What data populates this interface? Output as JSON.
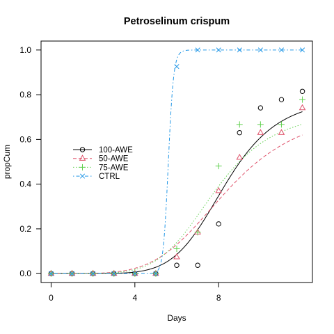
{
  "chart_data": {
    "type": "scatter",
    "title": "Petroselinum crispum",
    "xlabel": "Days",
    "ylabel": "propCum",
    "xlim": [
      -0.48,
      12.48
    ],
    "ylim": [
      -0.04,
      1.04
    ],
    "x_ticks": [
      0,
      4,
      8
    ],
    "y_ticks": [
      0.0,
      0.2,
      0.4,
      0.6,
      0.8,
      1.0
    ],
    "x_tick_labels": [
      "0",
      "4",
      "8"
    ],
    "y_tick_labels": [
      "0.0",
      "0.2",
      "0.4",
      "0.6",
      "0.8",
      "1.0"
    ],
    "grid": false,
    "legend_position": "left-middle",
    "series": [
      {
        "name": "100-AWE",
        "color": "#000000",
        "marker": "circle",
        "line_style": "solid",
        "x": [
          0,
          1,
          2,
          3,
          4,
          5,
          6,
          7,
          8,
          9,
          10,
          11,
          12
        ],
        "y": [
          0.0,
          0.0,
          0.0,
          0.0,
          0.0,
          0.0,
          0.037,
          0.037,
          0.222,
          0.63,
          0.741,
          0.778,
          0.815
        ],
        "curve": {
          "d": 0.79,
          "e": 8.3,
          "b": 6.5
        }
      },
      {
        "name": "50-AWE",
        "color": "#DF536B",
        "marker": "triangle",
        "line_style": "dashed",
        "x": [
          0,
          1,
          2,
          3,
          4,
          5,
          6,
          7,
          8,
          9,
          10,
          11,
          12
        ],
        "y": [
          0.0,
          0.0,
          0.0,
          0.0,
          0.0,
          0.0,
          0.074,
          0.185,
          0.37,
          0.519,
          0.63,
          0.63,
          0.741
        ],
        "curve": {
          "d": 0.74,
          "e": 8.4,
          "b": 4.6
        }
      },
      {
        "name": "75-AWE",
        "color": "#61D04F",
        "marker": "plus",
        "line_style": "dotted",
        "x": [
          0,
          1,
          2,
          3,
          4,
          5,
          6,
          7,
          8,
          9,
          10,
          11,
          12
        ],
        "y": [
          0.0,
          0.0,
          0.0,
          0.0,
          0.0,
          0.0,
          0.111,
          0.185,
          0.481,
          0.667,
          0.667,
          0.667,
          0.778
        ],
        "curve": {
          "d": 0.73,
          "e": 7.8,
          "b": 5.5
        }
      },
      {
        "name": "CTRL",
        "color": "#2297E6",
        "marker": "cross",
        "line_style": "dotdash",
        "x": [
          0,
          1,
          2,
          3,
          4,
          5,
          6,
          7,
          8,
          9,
          10,
          11,
          12
        ],
        "y": [
          0.0,
          0.0,
          0.0,
          0.0,
          0.0,
          0.0,
          0.926,
          1.0,
          1.0,
          1.0,
          1.0,
          1.0,
          1.0
        ],
        "curve": {
          "d": 1.0,
          "e": 5.6,
          "b": 45
        }
      }
    ]
  }
}
